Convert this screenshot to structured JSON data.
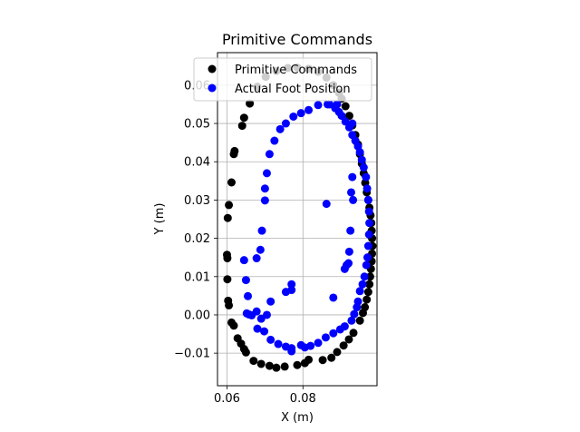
{
  "chart_data": {
    "type": "scatter",
    "title": "Primitive Commands",
    "xlabel": "X (m)",
    "ylabel": "Y (m)",
    "xlim": [
      0.0575,
      0.0995
    ],
    "ylim": [
      -0.0185,
      0.0685
    ],
    "xticks": [
      0.06,
      0.08
    ],
    "xtick_labels": [
      "0.06",
      "0.08"
    ],
    "yticks": [
      -0.01,
      0.0,
      0.01,
      0.02,
      0.03,
      0.04,
      0.05,
      0.06
    ],
    "ytick_labels": [
      "−0.01",
      "0.00",
      "0.01",
      "0.02",
      "0.03",
      "0.04",
      "0.05",
      "0.06"
    ],
    "grid": true,
    "legend": "top-right",
    "series": [
      {
        "name": "Primitive Commands",
        "color": "#000000",
        "points": [
          [
            0.06,
            0.0157
          ],
          [
            0.0601,
            0.0148
          ],
          [
            0.0601,
            0.0093
          ],
          [
            0.0603,
            0.0037
          ],
          [
            0.0605,
            0.0025
          ],
          [
            0.0612,
            -0.002
          ],
          [
            0.0618,
            -0.0028
          ],
          [
            0.0628,
            -0.0061
          ],
          [
            0.0637,
            -0.0075
          ],
          [
            0.0645,
            -0.0089
          ],
          [
            0.065,
            -0.0098
          ],
          [
            0.067,
            -0.012
          ],
          [
            0.069,
            -0.0128
          ],
          [
            0.0712,
            -0.0133
          ],
          [
            0.073,
            -0.0138
          ],
          [
            0.0752,
            -0.0135
          ],
          [
            0.0785,
            -0.0131
          ],
          [
            0.0805,
            -0.0126
          ],
          [
            0.0815,
            -0.0117
          ],
          [
            0.0852,
            -0.0118
          ],
          [
            0.0875,
            -0.0112
          ],
          [
            0.089,
            -0.0097
          ],
          [
            0.0907,
            -0.008
          ],
          [
            0.0921,
            -0.0064
          ],
          [
            0.0933,
            -0.0047
          ],
          [
            0.095,
            -0.0015
          ],
          [
            0.0958,
            0.0005
          ],
          [
            0.0963,
            0.002
          ],
          [
            0.0968,
            0.004
          ],
          [
            0.0972,
            0.006
          ],
          [
            0.0975,
            0.008
          ],
          [
            0.0977,
            0.01
          ],
          [
            0.0979,
            0.012
          ],
          [
            0.0981,
            0.014
          ],
          [
            0.0982,
            0.016
          ],
          [
            0.0983,
            0.018
          ],
          [
            0.0982,
            0.02
          ],
          [
            0.0981,
            0.022
          ],
          [
            0.098,
            0.024
          ],
          [
            0.0978,
            0.026
          ],
          [
            0.0975,
            0.028
          ],
          [
            0.0972,
            0.03
          ],
          [
            0.0968,
            0.032
          ],
          [
            0.0964,
            0.0345
          ],
          [
            0.096,
            0.037
          ],
          [
            0.0955,
            0.0395
          ],
          [
            0.095,
            0.042
          ],
          [
            0.0945,
            0.0445
          ],
          [
            0.0938,
            0.047
          ],
          [
            0.093,
            0.0495
          ],
          [
            0.0922,
            0.052
          ],
          [
            0.0912,
            0.0545
          ],
          [
            0.0902,
            0.0565
          ],
          [
            0.0895,
            0.058
          ],
          [
            0.088,
            0.06
          ],
          [
            0.0862,
            0.062
          ],
          [
            0.084,
            0.0635
          ],
          [
            0.0815,
            0.0643
          ],
          [
            0.0785,
            0.0646
          ],
          [
            0.076,
            0.0645
          ],
          [
            0.073,
            0.0637
          ],
          [
            0.0702,
            0.0622
          ],
          [
            0.068,
            0.0596
          ],
          [
            0.066,
            0.0552
          ],
          [
            0.0645,
            0.0515
          ],
          [
            0.064,
            0.0494
          ],
          [
            0.062,
            0.0428
          ],
          [
            0.0618,
            0.042
          ],
          [
            0.0612,
            0.0346
          ],
          [
            0.0605,
            0.0287
          ],
          [
            0.0602,
            0.0253
          ]
        ]
      },
      {
        "name": "Actual Foot Position",
        "color": "#0000ff",
        "points": [
          [
            0.0645,
            0.0143
          ],
          [
            0.065,
            0.0091
          ],
          [
            0.0655,
            0.0049
          ],
          [
            0.0652,
            0.0004
          ],
          [
            0.0658,
            0.0001
          ],
          [
            0.0665,
            -0.0001
          ],
          [
            0.068,
            -0.0036
          ],
          [
            0.0698,
            -0.0043
          ],
          [
            0.0715,
            -0.0065
          ],
          [
            0.0735,
            -0.0076
          ],
          [
            0.0755,
            -0.0083
          ],
          [
            0.077,
            -0.0087
          ],
          [
            0.0795,
            -0.0079
          ],
          [
            0.082,
            -0.0081
          ],
          [
            0.084,
            -0.0073
          ],
          [
            0.086,
            -0.0059
          ],
          [
            0.088,
            -0.0048
          ],
          [
            0.0898,
            -0.0038
          ],
          [
            0.091,
            -0.003
          ],
          [
            0.0928,
            -0.0015
          ],
          [
            0.0935,
            0.0002
          ],
          [
            0.0942,
            0.002
          ],
          [
            0.0945,
            0.0035
          ],
          [
            0.095,
            0.0062
          ],
          [
            0.0957,
            0.008
          ],
          [
            0.0962,
            0.01
          ],
          [
            0.0967,
            0.013
          ],
          [
            0.097,
            0.015
          ],
          [
            0.0972,
            0.018
          ],
          [
            0.0974,
            0.021
          ],
          [
            0.0975,
            0.024
          ],
          [
            0.0974,
            0.027
          ],
          [
            0.0972,
            0.03
          ],
          [
            0.0969,
            0.033
          ],
          [
            0.0966,
            0.036
          ],
          [
            0.096,
            0.0385
          ],
          [
            0.0955,
            0.0405
          ],
          [
            0.095,
            0.0425
          ],
          [
            0.0945,
            0.044
          ],
          [
            0.0938,
            0.0455
          ],
          [
            0.093,
            0.047
          ],
          [
            0.0922,
            0.049
          ],
          [
            0.0912,
            0.0505
          ],
          [
            0.0902,
            0.052
          ],
          [
            0.0895,
            0.053
          ],
          [
            0.0885,
            0.054
          ],
          [
            0.0865,
            0.055
          ],
          [
            0.084,
            0.0548
          ],
          [
            0.0815,
            0.0535
          ],
          [
            0.0795,
            0.0527
          ],
          [
            0.0775,
            0.0518
          ],
          [
            0.0755,
            0.05
          ],
          [
            0.074,
            0.0485
          ],
          [
            0.0725,
            0.0455
          ],
          [
            0.0712,
            0.042
          ],
          [
            0.0705,
            0.037
          ],
          [
            0.07,
            0.033
          ],
          [
            0.07,
            0.0299
          ],
          [
            0.0692,
            0.022
          ],
          [
            0.0688,
            0.017
          ],
          [
            0.0678,
            0.0148
          ],
          [
            0.0678,
            0.0009
          ],
          [
            0.069,
            -0.001
          ],
          [
            0.0705,
            0.0
          ],
          [
            0.0715,
            0.0035
          ],
          [
            0.0755,
            0.006
          ],
          [
            0.077,
            0.0065
          ],
          [
            0.077,
            0.008
          ],
          [
            0.0862,
            0.029
          ],
          [
            0.0915,
            0.013
          ],
          [
            0.091,
            0.012
          ],
          [
            0.0922,
            0.0165
          ],
          [
            0.092,
            0.0135
          ],
          [
            0.0925,
            0.022
          ],
          [
            0.0932,
            0.03
          ],
          [
            0.093,
            0.036
          ],
          [
            0.0927,
            0.032
          ],
          [
            0.093,
            0.05
          ],
          [
            0.089,
            0.055
          ],
          [
            0.087,
            0.055
          ],
          [
            0.077,
            -0.0095
          ],
          [
            0.0805,
            -0.0085
          ],
          [
            0.088,
            0.0045
          ]
        ]
      }
    ]
  }
}
